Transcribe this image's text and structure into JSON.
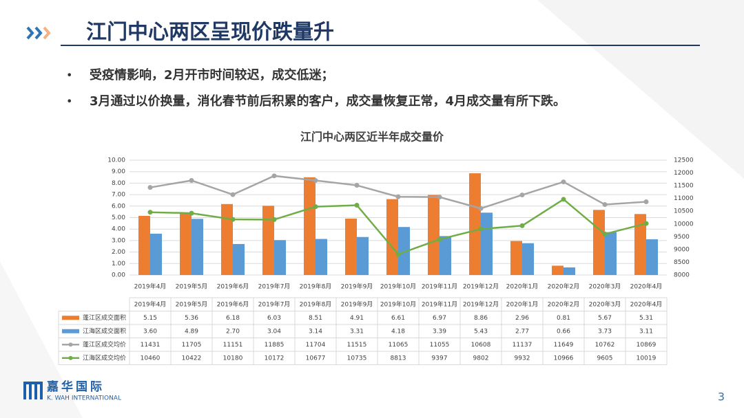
{
  "header": {
    "title": "江门中心两区呈现价跌量升"
  },
  "bullets": [
    "受疫情影响，2月开市时间较迟，成交低迷；",
    "3月通过以价换量，消化春节前后积累的客户，成交量恢复正常，4月成交量有所下跌。"
  ],
  "chart_data": {
    "type": "bar",
    "title": "江门中心两区近半年成交量价",
    "categories": [
      "2019年4月",
      "2019年5月",
      "2019年6月",
      "2019年7月",
      "2019年8月",
      "2019年9月",
      "2019年10月",
      "2019年11月",
      "2019年12月",
      "2020年1月",
      "2020年2月",
      "2020年3月",
      "2020年4月"
    ],
    "series": [
      {
        "name": "蓬江区成交面积",
        "type": "bar",
        "color": "#ed7d31",
        "values": [
          5.15,
          5.36,
          6.18,
          6.03,
          8.51,
          4.91,
          6.61,
          6.97,
          8.86,
          2.96,
          0.81,
          5.67,
          5.31
        ]
      },
      {
        "name": "江海区成交面积",
        "type": "bar",
        "color": "#5b9bd5",
        "values": [
          3.6,
          4.89,
          2.7,
          3.04,
          3.14,
          3.31,
          4.18,
          3.39,
          5.43,
          2.77,
          0.66,
          3.73,
          3.11
        ],
        "value_labels": [
          "3.60",
          "4.89",
          "2.70",
          "3.04",
          "3.14",
          "3.31",
          "4.18",
          "3.39",
          "5.43",
          "2.77",
          "0.66",
          "3.73",
          "3.11"
        ]
      },
      {
        "name": "蓬江区成交均价",
        "type": "line",
        "axis": "y2",
        "color": "#a5a5a5",
        "values": [
          11431,
          11705,
          11151,
          11885,
          11704,
          11515,
          11065,
          11055,
          10608,
          11137,
          11649,
          10762,
          10869
        ]
      },
      {
        "name": "江海区成交均价",
        "type": "line",
        "axis": "y2",
        "color": "#70ad47",
        "values": [
          10460,
          10422,
          10180,
          10172,
          10677,
          10735,
          8813,
          9397,
          9802,
          9932,
          10966,
          9605,
          10019
        ]
      }
    ],
    "ylim": [
      0,
      10
    ],
    "yticks": [
      {
        "value": 0,
        "label": "0.00"
      },
      {
        "value": 1,
        "label": "1.00"
      },
      {
        "value": 2,
        "label": "2.00"
      },
      {
        "value": 3,
        "label": "3.00"
      },
      {
        "value": 4,
        "label": "4.00"
      },
      {
        "value": 5,
        "label": "5.00"
      },
      {
        "value": 6,
        "label": "6.00"
      },
      {
        "value": 7,
        "label": "7.00"
      },
      {
        "value": 8,
        "label": "8.00"
      },
      {
        "value": 9,
        "label": "9.00"
      },
      {
        "value": 10,
        "label": "10.00"
      }
    ],
    "y2lim": [
      8000,
      12500
    ],
    "y2ticks": [
      8000,
      8500,
      9000,
      9500,
      10000,
      10500,
      11000,
      11500,
      12000,
      12500
    ],
    "grid": true
  },
  "logo": {
    "name": "嘉华国际",
    "english": "K. WAH INTERNATIONAL"
  },
  "page_number": "3"
}
